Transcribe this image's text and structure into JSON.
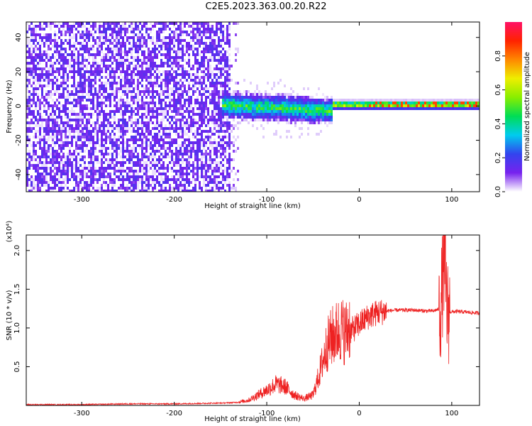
{
  "title": "C2E5.2023.363.00.20.R22",
  "colors": {
    "snr_line": "#ee2222",
    "axis": "#000000"
  },
  "chart_data": [
    {
      "type": "heatmap",
      "xlabel": "Height of straight line (km)",
      "ylabel": "Frequency (Hz)",
      "xlim": [
        -360,
        130
      ],
      "ylim": [
        -50,
        49
      ],
      "xticks": [
        -300,
        -200,
        -100,
        0,
        100
      ],
      "yticks": [
        -40,
        -20,
        0,
        20,
        40
      ],
      "colorbar": {
        "label": "Normalized spectral amplitude",
        "range": [
          0.0,
          1.0
        ],
        "ticks": [
          "0.0",
          "0.2",
          "0.4",
          "0.6",
          "0.8"
        ],
        "tick_values": [
          0.0,
          0.2,
          0.4,
          0.6,
          0.8
        ],
        "colormap": [
          "#ffffff",
          "#7722ee",
          "#3344ee",
          "#00ccee",
          "#00dd55",
          "#88ee00",
          "#eeee00",
          "#ff8800",
          "#ff2200",
          "#ff1166"
        ]
      },
      "regions": [
        {
          "name": "noise",
          "x_range": [
            -360,
            -140
          ],
          "freq_range": [
            -50,
            49
          ],
          "amplitude": 0.05
        },
        {
          "name": "signal",
          "x_range": [
            -150,
            130
          ],
          "center_freq_hz": 1.5,
          "amplitude_peak": 0.9
        }
      ]
    },
    {
      "type": "line",
      "xlabel": "Height of straight line (km)",
      "ylabel": "SNR (10 * v/v)",
      "y_multiplier": "(x10⁴)",
      "xlim": [
        -360,
        130
      ],
      "ylim": [
        0,
        2.2
      ],
      "xticks": [
        -300,
        -200,
        -100,
        0,
        100
      ],
      "yticks": [
        0.5,
        1.0,
        1.5,
        2.0
      ],
      "ytick_labels": [
        "0.5",
        "1.0",
        "1.5",
        "2.0"
      ],
      "series": [
        {
          "x": [
            -360,
            -300,
            -250,
            -200,
            -150,
            -130,
            -120,
            -110,
            -100,
            -90,
            -80,
            -70,
            -60,
            -50,
            -45,
            -40,
            -35,
            -30,
            -25,
            -20,
            -15,
            -10,
            -5,
            0,
            5,
            10,
            20,
            30,
            40,
            50,
            60,
            70,
            80,
            88,
            92,
            95,
            100,
            110,
            120,
            130
          ],
          "y": [
            0.01,
            0.01,
            0.02,
            0.02,
            0.03,
            0.04,
            0.06,
            0.12,
            0.18,
            0.25,
            0.22,
            0.12,
            0.08,
            0.12,
            0.3,
            0.5,
            0.7,
            0.8,
            0.85,
            0.9,
            0.85,
            0.95,
            1.0,
            1.05,
            1.1,
            1.15,
            1.2,
            1.22,
            1.23,
            1.23,
            1.23,
            1.22,
            1.22,
            1.25,
            1.9,
            1.2,
            1.21,
            1.21,
            1.2,
            1.19
          ]
        }
      ]
    }
  ]
}
